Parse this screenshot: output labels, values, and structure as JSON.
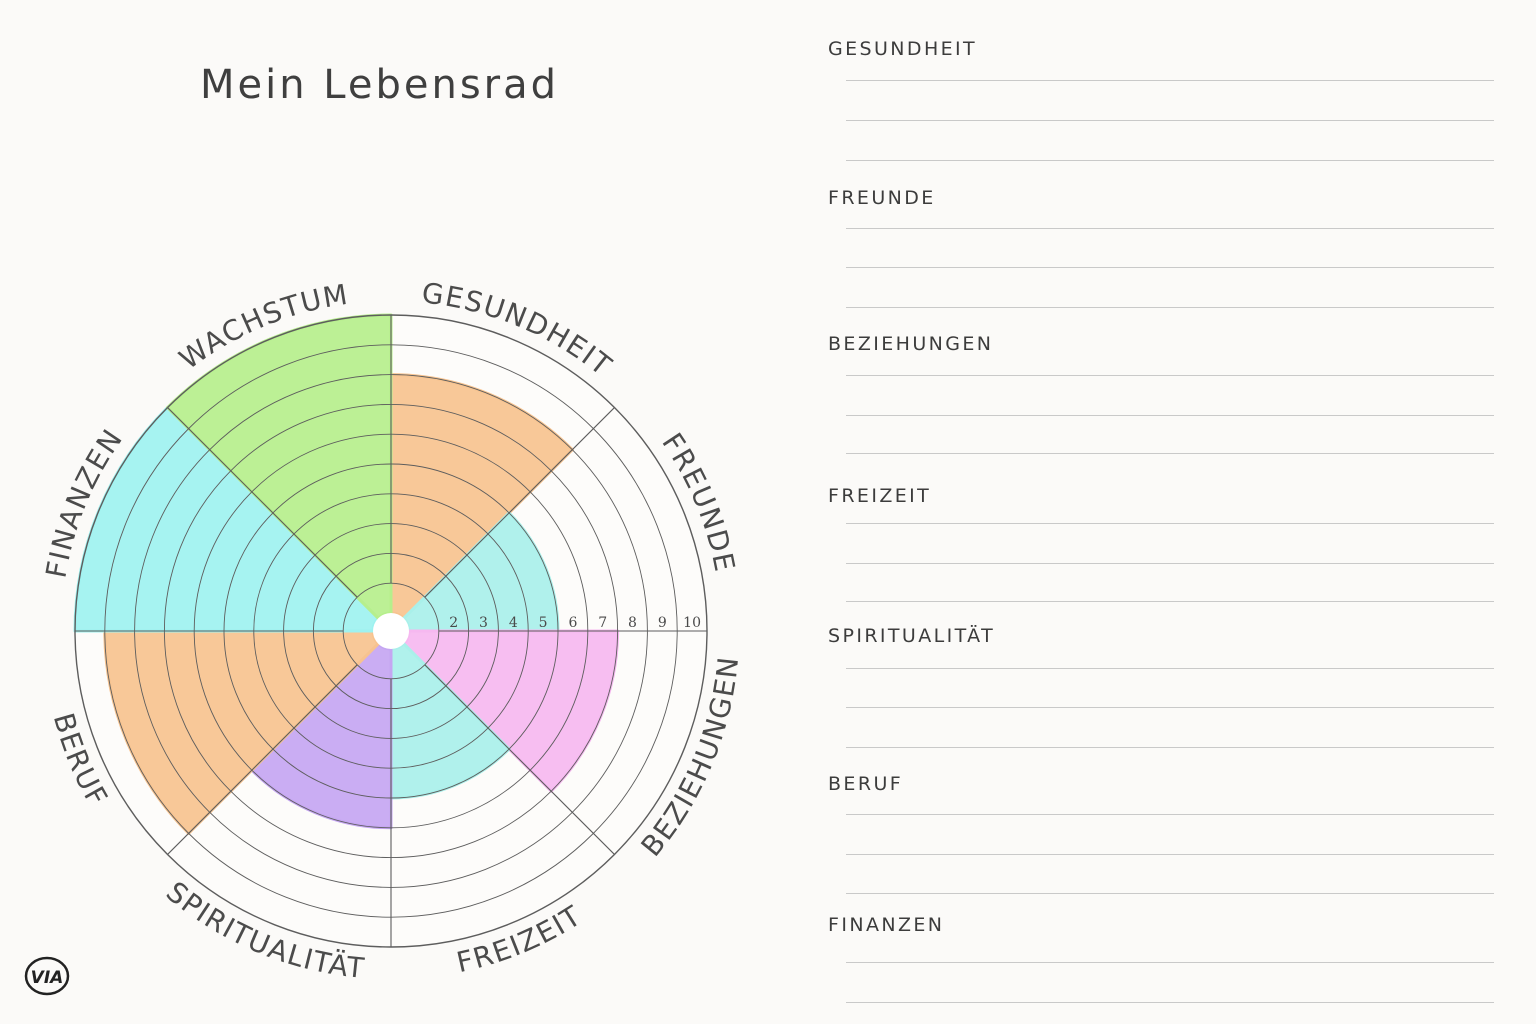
{
  "title": "Mein Lebensrad",
  "wheel": {
    "categories": [
      "GESUNDHEIT",
      "FREUNDE",
      "BEZIEHUNGEN",
      "FREIZEIT",
      "SPIRITUALITÄT",
      "BERUF",
      "FINANZEN",
      "WACHSTUM"
    ],
    "scale_ticks": [
      "2",
      "3",
      "4",
      "5",
      "6",
      "7",
      "8",
      "9",
      "10"
    ],
    "max_scale": 10,
    "ratings": [
      {
        "category": "GESUNDHEIT",
        "value": 8,
        "color": "#f7c38f"
      },
      {
        "category": "FREUNDE",
        "value": 5,
        "color": "#a9f0ea"
      },
      {
        "category": "BEZIEHUNGEN",
        "value": 7,
        "color": "#f6b8f0"
      },
      {
        "category": "FREIZEIT",
        "value": 5,
        "color": "#a9f0ea"
      },
      {
        "category": "SPIRITUALITÄT",
        "value": 6,
        "color": "#c5a6f2"
      },
      {
        "category": "BERUF",
        "value": 9,
        "color": "#f7c38f"
      },
      {
        "category": "FINANZEN",
        "value": 10,
        "color": "#9ef2f0"
      },
      {
        "category": "WACHSTUM",
        "value": 10,
        "color": "#b6ef8c"
      }
    ]
  },
  "notes": {
    "sections": [
      {
        "label": "GESUNDHEIT"
      },
      {
        "label": "FREUNDE"
      },
      {
        "label": "BEZIEHUNGEN"
      },
      {
        "label": "FREIZEIT"
      },
      {
        "label": "SPIRITUALITÄT"
      },
      {
        "label": "BERUF"
      },
      {
        "label": "FINANZEN"
      }
    ]
  },
  "logo": {
    "text": "VIA"
  }
}
